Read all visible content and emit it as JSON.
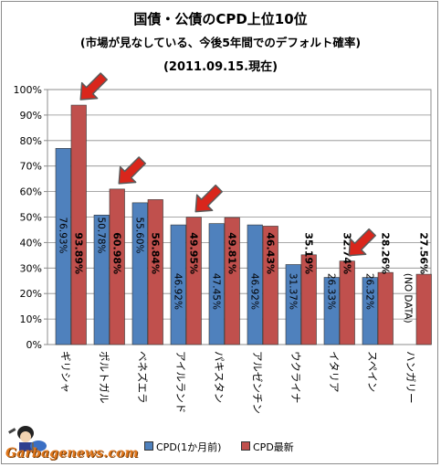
{
  "titles": {
    "line1": "国債・公債のCPD上位10位",
    "line2": "(市場が見なしている、今後5年間でのデフォルト確率)",
    "line3": "(2011.09.15.現在)"
  },
  "logo": {
    "text": "Garbagenews.com"
  },
  "chart_data": {
    "type": "bar",
    "title": "国債・公債のCPD上位10位",
    "ylim": [
      0,
      100
    ],
    "yticks": [
      "0%",
      "10%",
      "20%",
      "30%",
      "40%",
      "50%",
      "60%",
      "70%",
      "80%",
      "90%",
      "100%"
    ],
    "grid": true,
    "legend_position": "bottom",
    "categories": [
      "ギリシャ",
      "ポルトガル",
      "ベネズエラ",
      "アイルランド",
      "パキスタン",
      "アルゼンチン",
      "ウクライナ",
      "イタリア",
      "スペイン",
      "ハンガリー"
    ],
    "series": [
      {
        "name": "CPD(1か月前)",
        "color": "#4f81bd",
        "values": [
          76.93,
          50.78,
          55.6,
          46.92,
          47.45,
          46.92,
          31.37,
          26.33,
          26.32,
          null
        ],
        "labels": [
          "76.93%",
          "50.78%",
          "55.60%",
          "46.92%",
          "47.45%",
          "46.92%",
          "31.37%",
          "26.33%",
          "26.32%",
          "(NO DATA)"
        ]
      },
      {
        "name": "CPD最新",
        "color": "#c0504d",
        "values": [
          93.89,
          60.98,
          56.84,
          49.95,
          49.81,
          46.43,
          35.19,
          32.74,
          28.26,
          27.56
        ],
        "labels": [
          "93.89%",
          "60.98%",
          "56.84%",
          "49.95%",
          "49.81%",
          "46.43%",
          "35.19%",
          "32.74%",
          "28.26%",
          "27.56%"
        ]
      }
    ],
    "highlighted_categories": [
      "ギリシャ",
      "ポルトガル",
      "アイルランド",
      "イタリア"
    ]
  }
}
